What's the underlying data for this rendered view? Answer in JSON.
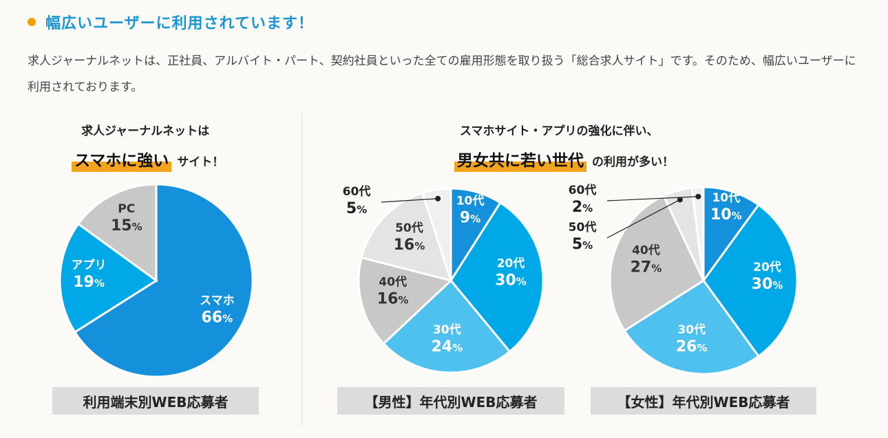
{
  "heading": "幅広いユーザーに利用されています！",
  "intro": "求人ジャーナルネットは、正社員、アルバイト・パート、契約社員といった全ての雇用形態を取り扱う「総合求人サイト」です。そのため、幅広いユーザーに利用されております。",
  "left_caption": {
    "line1": "求人ジャーナルネットは",
    "highlight": "スマホに強い",
    "rest": "サイト！"
  },
  "right_caption": {
    "line1": "スマホサイト・アプリの強化に伴い、",
    "highlight": "男女共に若い世代",
    "rest": "の利用が多い！"
  },
  "colors": {
    "heading": "#1a96d6",
    "accent": "#f2a51c",
    "blue_dark": "#1591dc",
    "blue": "#00a8e8",
    "blue_light": "#4ec1ee",
    "gray_mid": "#c8c8c8",
    "gray_light": "#e4e4e4",
    "gray_pale": "#f0f0f0"
  },
  "chart_data": [
    {
      "type": "pie",
      "title": "利用端末別WEB応募者",
      "unit": "%",
      "slices": [
        {
          "name": "スマホ",
          "value": 66,
          "color": "#1591dc"
        },
        {
          "name": "アプリ",
          "value": 19,
          "color": "#00a8e8"
        },
        {
          "name": "PC",
          "value": 15,
          "color": "#c8c8c8"
        }
      ]
    },
    {
      "type": "pie",
      "title": "【男性】年代別WEB応募者",
      "unit": "%",
      "slices": [
        {
          "name": "10代",
          "value": 9,
          "color": "#1591dc"
        },
        {
          "name": "20代",
          "value": 30,
          "color": "#00a8e8"
        },
        {
          "name": "30代",
          "value": 24,
          "color": "#4ec1ee"
        },
        {
          "name": "40代",
          "value": 16,
          "color": "#c8c8c8"
        },
        {
          "name": "50代",
          "value": 16,
          "color": "#e4e4e4"
        },
        {
          "name": "60代",
          "value": 5,
          "color": "#f0f0f0"
        }
      ]
    },
    {
      "type": "pie",
      "title": "【女性】年代別WEB応募者",
      "unit": "%",
      "slices": [
        {
          "name": "10代",
          "value": 10,
          "color": "#1591dc"
        },
        {
          "name": "20代",
          "value": 30,
          "color": "#00a8e8"
        },
        {
          "name": "30代",
          "value": 26,
          "color": "#4ec1ee"
        },
        {
          "name": "40代",
          "value": 27,
          "color": "#c8c8c8"
        },
        {
          "name": "50代",
          "value": 5,
          "color": "#e4e4e4"
        },
        {
          "name": "60代",
          "value": 2,
          "color": "#f0f0f0"
        }
      ]
    }
  ]
}
